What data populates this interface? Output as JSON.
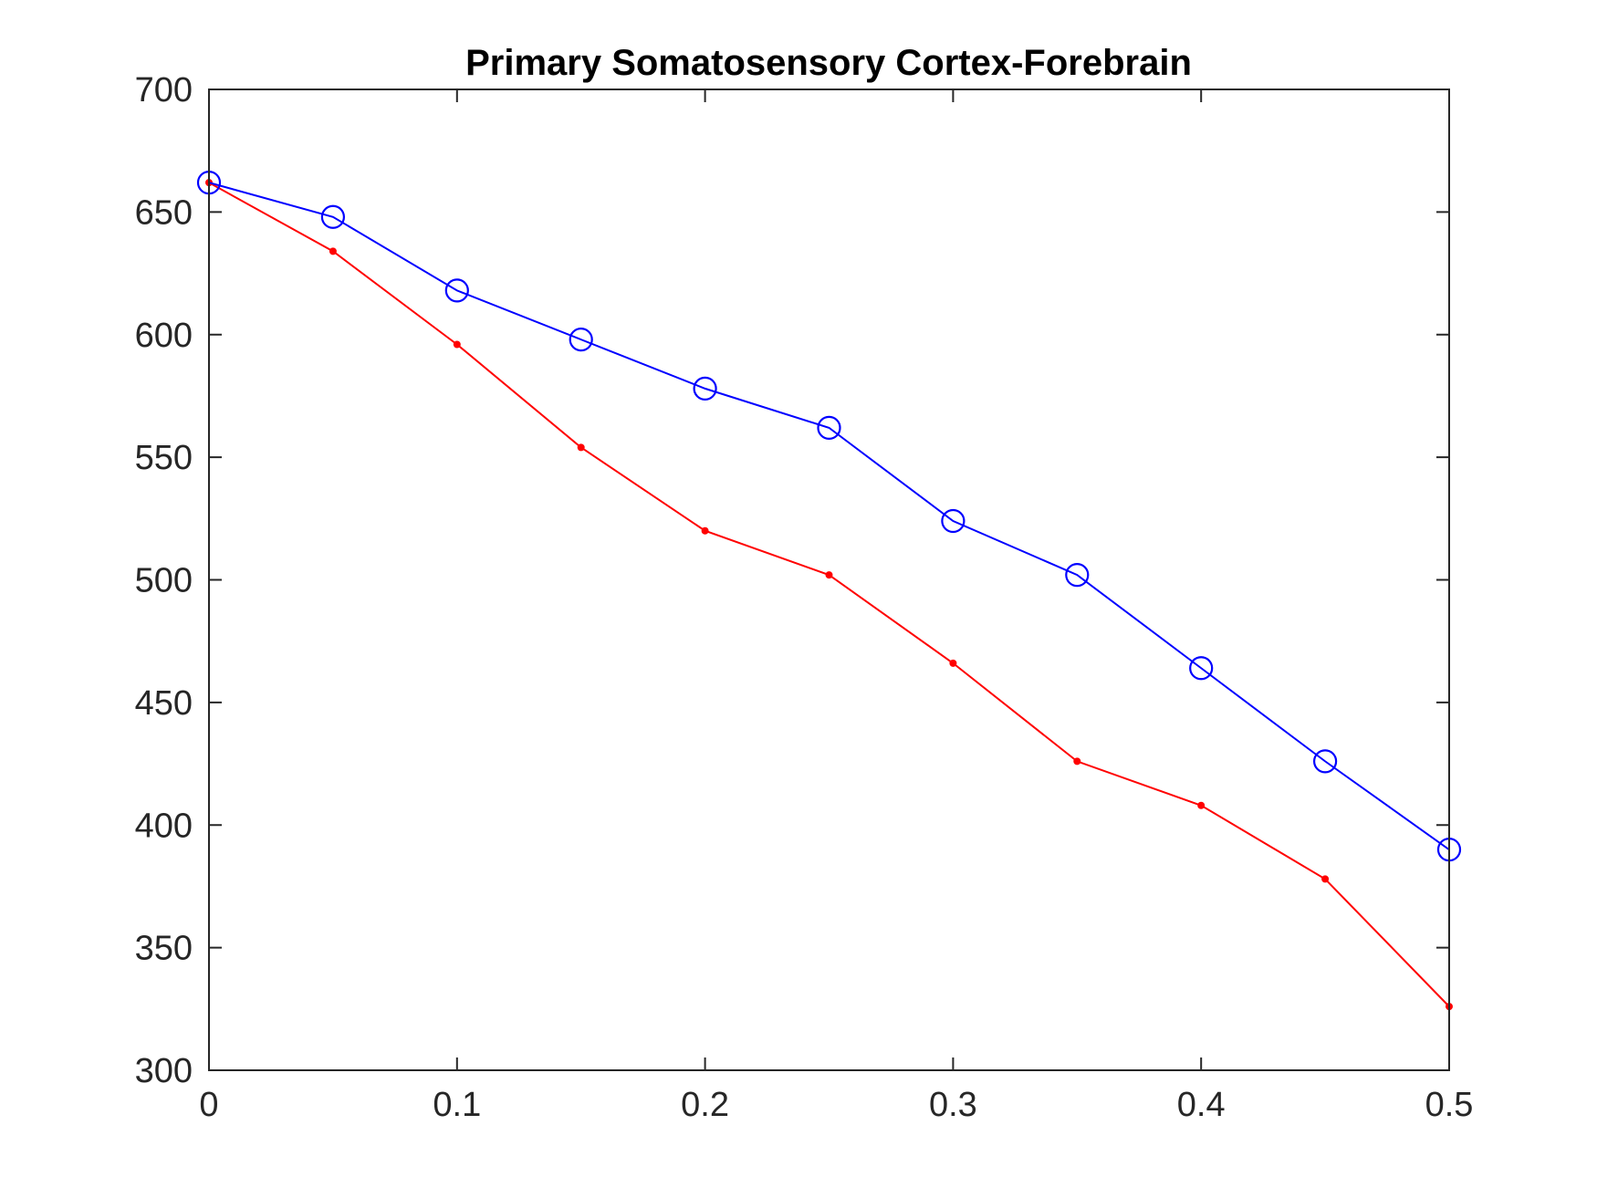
{
  "chart_data": {
    "type": "line",
    "title": "Primary Somatosensory Cortex-Forebrain",
    "xlabel": "",
    "ylabel": "",
    "xlim": [
      0,
      0.5
    ],
    "ylim": [
      300,
      700
    ],
    "xticks": [
      0,
      0.1,
      0.2,
      0.3,
      0.4,
      0.5
    ],
    "xtick_labels": [
      "0",
      "0.1",
      "0.2",
      "0.3",
      "0.4",
      "0.5"
    ],
    "yticks": [
      300,
      350,
      400,
      450,
      500,
      550,
      600,
      650,
      700
    ],
    "ytick_labels": [
      "300",
      "350",
      "400",
      "450",
      "500",
      "550",
      "600",
      "650",
      "700"
    ],
    "grid": false,
    "x": [
      0,
      0.05,
      0.1,
      0.15,
      0.2,
      0.25,
      0.3,
      0.35,
      0.4,
      0.45,
      0.5
    ],
    "series": [
      {
        "color": "#0000ff",
        "marker": "circle",
        "values": [
          662,
          648,
          618,
          598,
          578,
          562,
          524,
          502,
          464,
          426,
          390
        ]
      },
      {
        "color": "#ff0000",
        "marker": "dot",
        "values": [
          662,
          634,
          596,
          554,
          520,
          502,
          466,
          426,
          408,
          378,
          326
        ]
      }
    ]
  }
}
